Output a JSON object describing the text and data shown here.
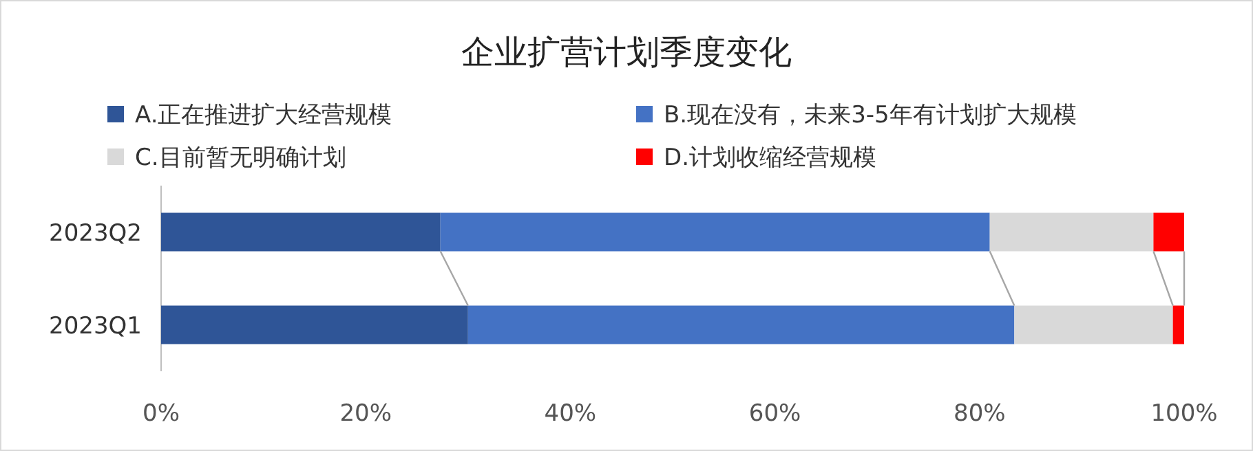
{
  "chart_data": {
    "type": "bar",
    "title": "企业扩营计划季度变化",
    "orientation": "horizontal",
    "stacked": true,
    "legend": "top",
    "categories": [
      "2023Q2",
      "2023Q1"
    ],
    "series": [
      {
        "name": "A.正在推进扩大经营规模",
        "color": "#2f5597",
        "values": [
          27.3,
          30.0
        ]
      },
      {
        "name": "B.现在没有，未来3-5年有计划扩大规模",
        "color": "#4472c4",
        "values": [
          53.7,
          53.4
        ]
      },
      {
        "name": "C.目前暂无明确计划",
        "color": "#d9d9d9",
        "values": [
          16.0,
          15.5
        ]
      },
      {
        "name": "D.计划收缩经营规模",
        "color": "#ff0000",
        "values": [
          3.0,
          1.1
        ]
      }
    ],
    "xlim": [
      0,
      100
    ],
    "xticks": [
      {
        "value": 0,
        "label": "0%"
      },
      {
        "value": 20,
        "label": "20%"
      },
      {
        "value": 40,
        "label": "40%"
      },
      {
        "value": 60,
        "label": "60%"
      },
      {
        "value": 80,
        "label": "80%"
      },
      {
        "value": 100,
        "label": "100%"
      }
    ]
  }
}
